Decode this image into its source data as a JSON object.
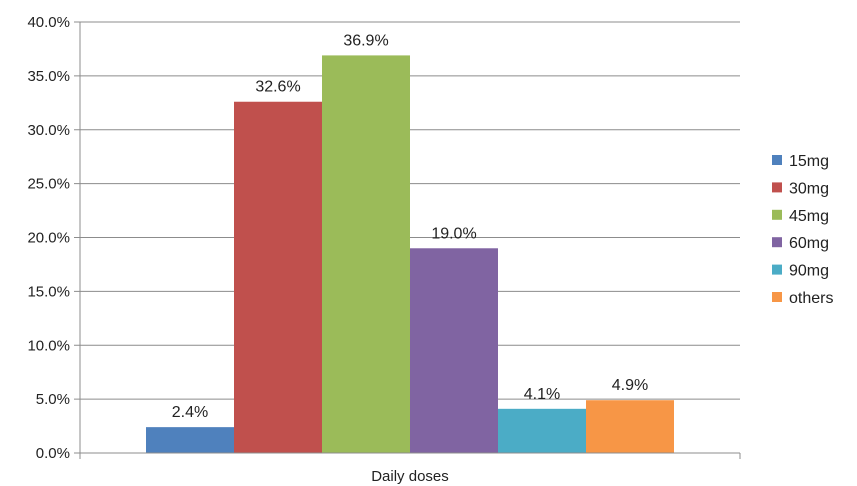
{
  "chart_data": {
    "type": "bar",
    "title": "",
    "xlabel": "Daily doses",
    "ylabel": "",
    "ylim": [
      0,
      40
    ],
    "yticks": [
      "0.0%",
      "5.0%",
      "10.0%",
      "15.0%",
      "20.0%",
      "25.0%",
      "30.0%",
      "35.0%",
      "40.0%"
    ],
    "grid": true,
    "legend_position": "right",
    "series": [
      {
        "name": "15mg",
        "value": 2.4,
        "label": "2.4%",
        "color": "#4f81bd"
      },
      {
        "name": "30mg",
        "value": 32.6,
        "label": "32.6%",
        "color": "#c0504d"
      },
      {
        "name": "45mg",
        "value": 36.9,
        "label": "36.9%",
        "color": "#9bbb59"
      },
      {
        "name": "60mg",
        "value": 19.0,
        "label": "19.0%",
        "color": "#8064a2"
      },
      {
        "name": "90mg",
        "value": 4.1,
        "label": "4.1%",
        "color": "#4bacc6"
      },
      {
        "name": "others",
        "value": 4.9,
        "label": "4.9%",
        "color": "#f79646"
      }
    ]
  }
}
